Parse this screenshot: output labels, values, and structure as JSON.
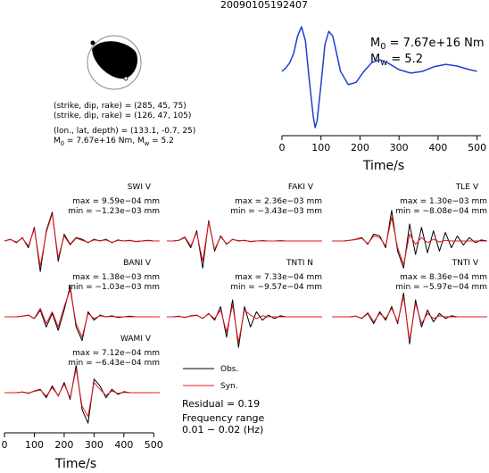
{
  "header": {
    "title": "20090105192407"
  },
  "mechanism": {
    "lines": [
      "(strike, dip, rake) = (285, 45, 75)",
      "(strike, dip, rake) = (126, 47, 105)",
      "(lon., lat, depth) = (133.1, -0.7, 25)"
    ],
    "moment_line": [
      "M",
      "0",
      " = 7.67e+16 Nm, M",
      "w",
      " = 5.2"
    ]
  },
  "chart_data": [
    {
      "type": "line",
      "xlabel": "Time/s",
      "color": "#1f3fd0",
      "annotation_moment": [
        "M",
        "0",
        " = 7.67e+16 Nm"
      ],
      "annotation_mw": [
        "M",
        "w",
        " = 5.2"
      ],
      "x": [
        0,
        10,
        20,
        30,
        40,
        50,
        60,
        70,
        80,
        85,
        90,
        100,
        110,
        120,
        130,
        140,
        150,
        170,
        190,
        210,
        230,
        250,
        270,
        300,
        330,
        360,
        390,
        420,
        450,
        480,
        500
      ],
      "values": [
        -0.03,
        0.03,
        0.12,
        0.28,
        0.58,
        0.74,
        0.5,
        -0.18,
        -0.8,
        -1.0,
        -0.88,
        -0.26,
        0.43,
        0.66,
        0.58,
        0.28,
        -0.03,
        -0.26,
        -0.22,
        -0.03,
        0.12,
        0.17,
        0.12,
        0,
        -0.06,
        -0.03,
        0.05,
        0.09,
        0.06,
        0,
        -0.03
      ],
      "xlim": [
        0,
        510
      ],
      "ylim": [
        -1,
        1
      ],
      "xticks": [
        0,
        100,
        200,
        300,
        400,
        500
      ]
    },
    {
      "type": "waveforms",
      "xlabel": "Time/s",
      "xlim": [
        0,
        520
      ],
      "ylim": [
        -1,
        1
      ],
      "xticks": [
        0,
        100,
        200,
        300,
        400,
        500
      ],
      "series": [
        {
          "name": "Obs.",
          "color": "#000000"
        },
        {
          "name": "Syn.",
          "color": "#e8141c"
        }
      ],
      "residual": "Residual = 0.19",
      "frequency_title": "Frequency range",
      "frequency_range": "0.01 − 0.02 (Hz)",
      "x": [
        0,
        20,
        40,
        60,
        80,
        100,
        120,
        140,
        160,
        180,
        200,
        220,
        240,
        260,
        280,
        300,
        320,
        340,
        360,
        380,
        400,
        420,
        440,
        460,
        480,
        500,
        520
      ],
      "panels": [
        {
          "name": "SWI V",
          "max": "max = 9.59e−04 mm",
          "min": "min = −1.23e−03 mm",
          "obs": [
            0,
            0.05,
            -0.05,
            0.1,
            -0.2,
            0.4,
            -0.9,
            0.3,
            0.85,
            -0.6,
            0.2,
            -0.1,
            0.1,
            0.05,
            -0.05,
            0.05,
            0,
            0.05,
            -0.05,
            0.03,
            0,
            0.02,
            -0.02,
            0,
            0.02,
            0,
            0
          ],
          "syn": [
            0,
            0.04,
            -0.03,
            0.08,
            -0.15,
            0.35,
            -0.75,
            0.25,
            0.8,
            -0.5,
            0.15,
            -0.12,
            0.08,
            0.02,
            -0.04,
            0.03,
            0.01,
            0.03,
            -0.04,
            0.02,
            0,
            0.01,
            -0.01,
            0,
            0.01,
            0,
            0
          ]
        },
        {
          "name": "FAKI V",
          "max": "max = 2.36e−03 mm",
          "min": "min = −3.43e−03 mm",
          "obs": [
            0,
            0,
            0.02,
            0.1,
            -0.2,
            0.3,
            -0.8,
            0.6,
            -0.3,
            0.15,
            -0.1,
            0.05,
            0,
            0.02,
            -0.02,
            0,
            0.01,
            0,
            0,
            0.01,
            0,
            0,
            0,
            0,
            0,
            0,
            0
          ],
          "syn": [
            0,
            0,
            0.02,
            0.12,
            -0.15,
            0.25,
            -0.6,
            0.55,
            -0.25,
            0.12,
            -0.08,
            0.04,
            0.01,
            0.01,
            -0.01,
            0,
            0,
            0,
            0,
            0,
            0,
            0,
            0,
            0,
            0,
            0,
            0
          ]
        },
        {
          "name": "TLE V",
          "max": "max = 1.30e−03 mm",
          "min": "min = −8.08e−04 mm",
          "obs": [
            0,
            0,
            0,
            0.02,
            0.05,
            0.1,
            -0.1,
            0.2,
            0.15,
            -0.2,
            0.9,
            -0.3,
            -0.8,
            0.5,
            -0.4,
            0.4,
            -0.35,
            0.3,
            -0.3,
            0.25,
            -0.2,
            0.15,
            -0.12,
            0.1,
            -0.05,
            0.03,
            0
          ],
          "syn": [
            0,
            0,
            0,
            0.02,
            0.04,
            0.08,
            -0.08,
            0.15,
            0.1,
            -0.15,
            0.7,
            -0.2,
            -0.7,
            0.2,
            -0.1,
            0.1,
            -0.05,
            0.05,
            -0.03,
            0.02,
            0,
            0,
            0,
            0,
            0,
            0,
            0
          ]
        },
        {
          "name": "BANI V",
          "max": "max = 1.38e−03 mm",
          "min": "min = −1.03e−03 mm",
          "obs": [
            0,
            0,
            0,
            0.02,
            0.05,
            -0.05,
            0.2,
            -0.3,
            0.1,
            -0.4,
            0.2,
            0.9,
            -0.3,
            -0.7,
            0.15,
            -0.1,
            0.05,
            0,
            0.03,
            -0.02,
            0,
            0.02,
            0,
            0,
            0,
            0,
            0
          ],
          "syn": [
            0,
            0,
            0,
            0.02,
            0.04,
            -0.04,
            0.25,
            -0.2,
            0.15,
            -0.3,
            0.3,
            0.8,
            -0.2,
            -0.6,
            0.1,
            -0.05,
            0.03,
            0,
            0.01,
            0,
            0,
            0,
            0,
            0,
            0,
            0,
            0
          ]
        },
        {
          "name": "TNTI N",
          "max": "max = 7.33e−04 mm",
          "min": "min = −9.57e−04 mm",
          "obs": [
            0,
            0,
            0.02,
            -0.02,
            0.03,
            0.05,
            -0.05,
            0.1,
            -0.1,
            0.3,
            -0.6,
            0.5,
            -0.9,
            0.3,
            -0.3,
            0.15,
            -0.1,
            0.05,
            -0.05,
            0.03,
            0,
            0,
            0,
            0,
            0,
            0,
            0
          ],
          "syn": [
            0,
            0,
            0.01,
            -0.01,
            0.02,
            0.04,
            -0.04,
            0.08,
            -0.05,
            0.2,
            -0.45,
            0.35,
            -0.75,
            0.2,
            0.05,
            -0.05,
            0.03,
            0,
            0,
            0,
            0,
            0,
            0,
            0,
            0,
            0,
            0
          ]
        },
        {
          "name": "TNTI V",
          "max": "max = 8.36e−04 mm",
          "min": "min = −5.97e−04 mm",
          "obs": [
            0,
            0,
            0,
            0,
            0.02,
            -0.05,
            0.1,
            -0.2,
            0.15,
            -0.1,
            0.3,
            -0.2,
            0.7,
            -0.8,
            0.5,
            -0.3,
            0.2,
            -0.15,
            0.1,
            -0.05,
            0.03,
            0,
            0,
            0,
            0,
            0,
            0
          ],
          "syn": [
            0,
            0,
            0,
            0,
            0.02,
            -0.04,
            0.12,
            -0.15,
            0.1,
            -0.05,
            0.25,
            -0.15,
            0.6,
            -0.7,
            0.4,
            -0.2,
            0.1,
            -0.05,
            0.03,
            0,
            0,
            0,
            0,
            0,
            0,
            0,
            0
          ]
        },
        {
          "name": "WAMI V",
          "max": "max = 7.12e−04 mm",
          "min": "min = −6.43e−04 mm",
          "obs": [
            0,
            0,
            0,
            0.02,
            -0.02,
            0.05,
            0.1,
            -0.15,
            0.2,
            -0.1,
            0.3,
            -0.2,
            0.8,
            -0.5,
            -0.9,
            0.4,
            0.2,
            -0.15,
            0.1,
            -0.05,
            0.03,
            0,
            0,
            0,
            0,
            0,
            0
          ],
          "syn": [
            0,
            0,
            0,
            0.02,
            -0.01,
            0.04,
            0.08,
            -0.1,
            0.15,
            -0.08,
            0.25,
            -0.15,
            0.7,
            -0.4,
            -0.7,
            0.3,
            0.1,
            -0.08,
            0.05,
            -0.02,
            0.01,
            0,
            0,
            0,
            0,
            0,
            0
          ]
        }
      ]
    }
  ]
}
